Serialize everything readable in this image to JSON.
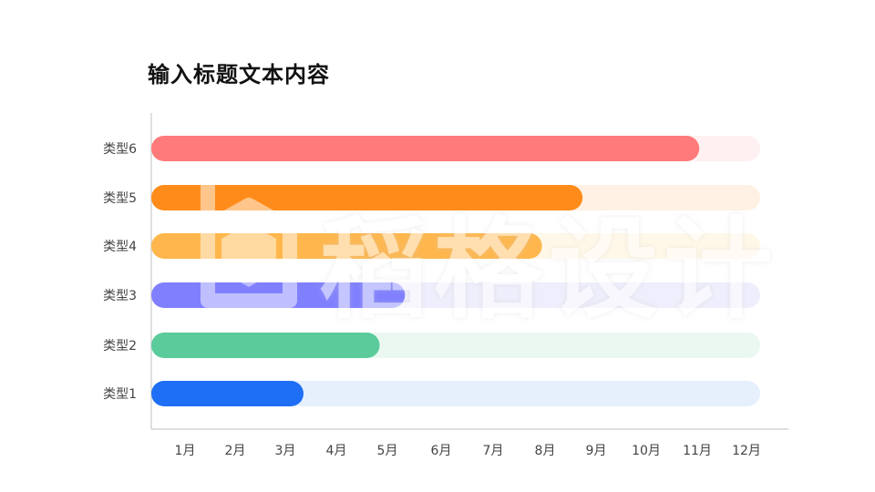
{
  "title": "输入标题文本内容",
  "watermark": "稻格设计",
  "chart_data": {
    "type": "bar",
    "orientation": "horizontal",
    "categories": [
      "类型1",
      "类型2",
      "类型3",
      "类型4",
      "类型5",
      "类型6"
    ],
    "values": [
      3,
      4.5,
      5,
      7.7,
      8.5,
      10.8
    ],
    "xlim": [
      0,
      12
    ],
    "x_ticks": [
      "1月",
      "2月",
      "3月",
      "4月",
      "5月",
      "6月",
      "7月",
      "8月",
      "9月",
      "10月",
      "11月",
      "12月"
    ],
    "colors": [
      "#1e6ff5",
      "#5ccb9b",
      "#8080ff",
      "#ffb74d",
      "#ff8c1a",
      "#ff7a7a"
    ],
    "track_colors": [
      "#e6effc",
      "#eaf8f1",
      "#eeeefc",
      "#fff8e8",
      "#fff1e3",
      "#fff1f1"
    ],
    "grid": false,
    "legend": "none"
  }
}
